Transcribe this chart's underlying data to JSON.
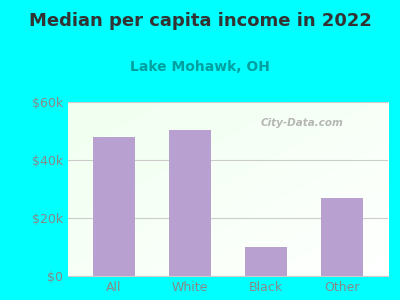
{
  "title": "Median per capita income in 2022",
  "subtitle": "Lake Mohawk, OH",
  "categories": [
    "All",
    "White",
    "Black",
    "Other"
  ],
  "values": [
    48000,
    50500,
    10000,
    27000
  ],
  "bar_color": "#b8a0d0",
  "background_color": "#00FFFF",
  "title_color": "#333333",
  "subtitle_color": "#00a0a0",
  "tick_color": "#888888",
  "ylim": [
    0,
    60000
  ],
  "yticks": [
    0,
    20000,
    40000,
    60000
  ],
  "ytick_labels": [
    "$0",
    "$20k",
    "$40k",
    "$60k"
  ],
  "grid_color": "#cccccc",
  "watermark_text": "City-Data.com",
  "title_fontsize": 13,
  "subtitle_fontsize": 10
}
